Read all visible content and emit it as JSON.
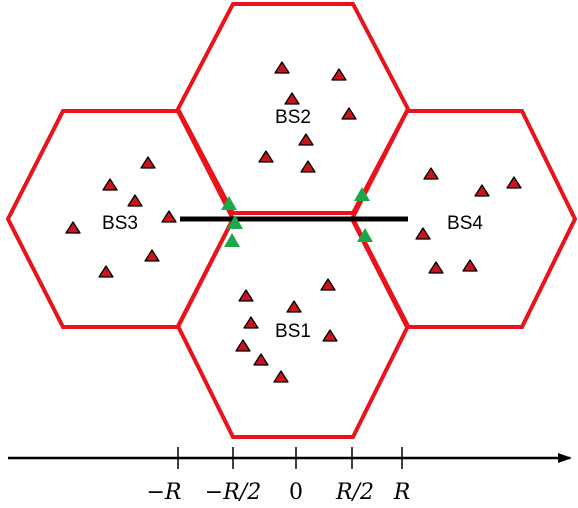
{
  "cells": {
    "bs1": {
      "label": "BS1"
    },
    "bs2": {
      "label": "BS2"
    },
    "bs3": {
      "label": "BS3"
    },
    "bs4": {
      "label": "BS4"
    }
  },
  "axis": {
    "ticks": [
      "−R",
      "−R/2",
      "0",
      "R/2",
      "R"
    ]
  },
  "colors": {
    "cell_border": "#e8131b",
    "user_marker": "#c8141a",
    "edge_user_marker": "#1aa84a",
    "path_line": "#000000",
    "axis_line": "#000000"
  }
}
